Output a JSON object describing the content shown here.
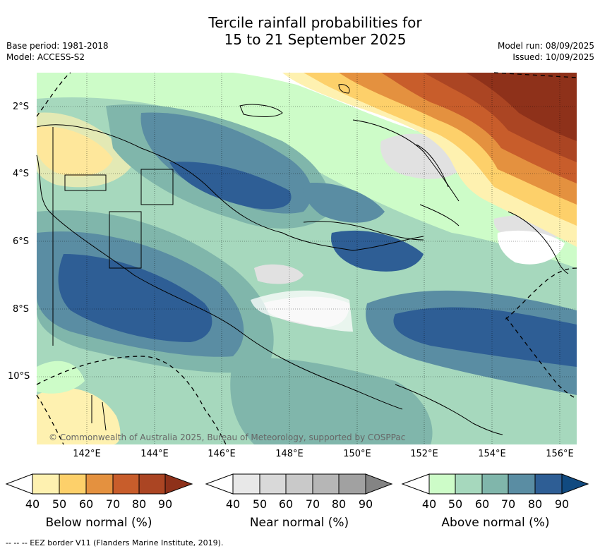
{
  "header": {
    "title_line1": "Tercile rainfall probabilities for",
    "title_line2": "15 to 21 September 2025",
    "base_period": "Base period: 1981-2018",
    "model": "Model: ACCESS-S2",
    "model_run": "Model run: 08/09/2025",
    "issued": "Issued: 10/09/2025"
  },
  "map": {
    "lat_labels": [
      "2°S",
      "4°S",
      "6°S",
      "8°S",
      "10°S"
    ],
    "lon_labels": [
      "142°E",
      "144°E",
      "146°E",
      "148°E",
      "150°E",
      "152°E",
      "154°E",
      "156°E"
    ],
    "copyright": "© Commonwealth of Australia 2025, Bureau of Meteorology, supported by COSPPac",
    "categories": {
      "below_normal": "warm oranges/browns in north-east and south-west",
      "near_normal": "grey patches",
      "above_normal": "greens/blues over central mainland and Solomon Sea"
    }
  },
  "legends": [
    {
      "label": "Below normal (%)",
      "ticks": [
        "40",
        "50",
        "60",
        "70",
        "80",
        "90"
      ],
      "colors": [
        "#fef1b0",
        "#fdd06a",
        "#e4913f",
        "#c85d2b",
        "#ab4523",
        "#8e311a"
      ]
    },
    {
      "label": "Near normal (%)",
      "ticks": [
        "40",
        "50",
        "60",
        "70",
        "80",
        "90"
      ],
      "colors": [
        "#e8e8e8",
        "#d9d9d9",
        "#c9c9c9",
        "#b6b6b6",
        "#a1a1a1",
        "#848484"
      ]
    },
    {
      "label": "Above normal (%)",
      "ticks": [
        "40",
        "50",
        "60",
        "70",
        "80",
        "90"
      ],
      "colors": [
        "#cdfcc8",
        "#a6d8bd",
        "#80b6ab",
        "#5a8da3",
        "#2e5e95",
        "#114a80"
      ]
    }
  ],
  "footnote": "--  --  -- EEZ border V11 (Flanders Marine Institute, 2019)."
}
